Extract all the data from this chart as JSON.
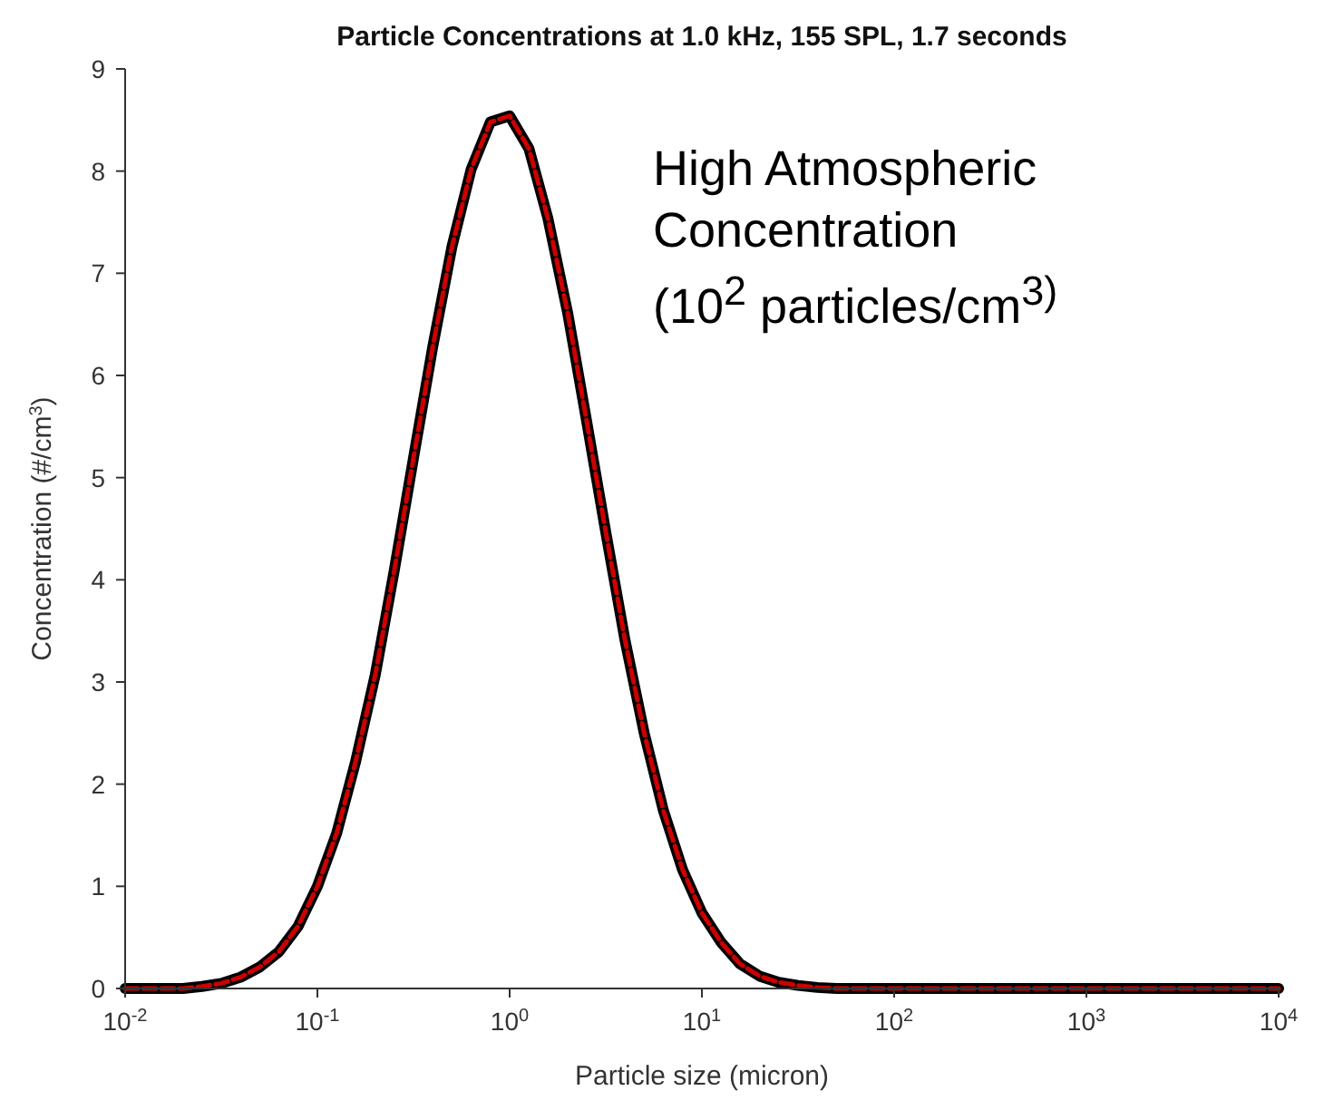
{
  "chart_data": {
    "type": "line",
    "title": "Particle Concentrations at 1.0 kHz, 155 SPL, 1.7 seconds",
    "xlabel": "Particle size (micron)",
    "ylabel": "Concentration (#/cm$^{3}$)",
    "annotations": [
      "High Atmospheric Concentration (10$^{2}$ particles/cm$^{3)}$"
    ],
    "x": [
      0.01,
      0.0126,
      0.0158,
      0.02,
      0.0251,
      0.0316,
      0.0398,
      0.0501,
      0.0631,
      0.0794,
      0.1,
      0.126,
      0.158,
      0.2,
      0.251,
      0.316,
      0.398,
      0.501,
      0.631,
      0.794,
      1,
      1.26,
      1.58,
      2,
      2.51,
      3.16,
      3.98,
      5.01,
      6.31,
      7.94,
      10,
      12.6,
      15.8,
      20,
      25.1,
      31.6,
      39.8,
      50.1,
      63.1,
      79.4,
      100,
      126,
      158,
      200,
      251,
      316,
      398,
      501,
      631,
      794,
      1000,
      1260,
      1580,
      2000,
      2510,
      3160,
      3980,
      5010,
      6310,
      7940,
      10000
    ],
    "series": [
      {
        "color": "#000000",
        "line_style": "solid",
        "values": [
          0,
          0,
          0,
          0,
          0.02,
          0.05,
          0.11,
          0.21,
          0.36,
          0.61,
          1.0,
          1.52,
          2.22,
          3.07,
          4.09,
          5.19,
          6.28,
          7.26,
          8.02,
          8.48,
          8.54,
          8.22,
          7.54,
          6.62,
          5.56,
          4.47,
          3.41,
          2.5,
          1.74,
          1.16,
          0.74,
          0.45,
          0.24,
          0.12,
          0.06,
          0.03,
          0.01,
          0,
          0,
          0,
          0,
          0,
          0,
          0,
          0,
          0,
          0,
          0,
          0,
          0,
          0,
          0,
          0,
          0,
          0,
          0,
          0,
          0,
          0,
          0,
          0
        ]
      },
      {
        "color": "#cc0000",
        "line_style": "dashed",
        "values": [
          0,
          0,
          0,
          0,
          0.02,
          0.05,
          0.11,
          0.21,
          0.36,
          0.61,
          1.0,
          1.52,
          2.22,
          3.07,
          4.09,
          5.19,
          6.28,
          7.26,
          8.02,
          8.48,
          8.54,
          8.22,
          7.54,
          6.62,
          5.56,
          4.47,
          3.41,
          2.5,
          1.74,
          1.16,
          0.74,
          0.45,
          0.24,
          0.12,
          0.06,
          0.03,
          0.01,
          0,
          0,
          0,
          0,
          0,
          0,
          0,
          0,
          0,
          0,
          0,
          0,
          0,
          0,
          0,
          0,
          0,
          0,
          0,
          0,
          0,
          0,
          0,
          0
        ]
      }
    ],
    "log": "x",
    "xlim": [
      0.01,
      10000
    ],
    "xticks": [
      {
        "value": 0.01,
        "label": "10$^{-2}$"
      },
      {
        "value": 0.1,
        "label": "10$^{-1}$"
      },
      {
        "value": 1,
        "label": "10$^{0}$"
      },
      {
        "value": 10,
        "label": "10$^{1}$"
      },
      {
        "value": 100,
        "label": "10$^{2}$"
      },
      {
        "value": 1000,
        "label": "10$^{3}$"
      },
      {
        "value": 10000,
        "label": "10$^{4}$"
      }
    ],
    "ylim": [
      0,
      9
    ],
    "yticks": [
      0,
      1,
      2,
      3,
      4,
      5,
      6,
      7,
      8,
      9
    ],
    "grid": false,
    "marker": "none"
  }
}
